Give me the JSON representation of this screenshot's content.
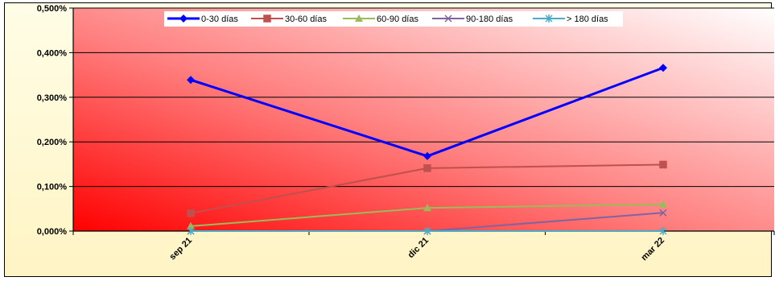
{
  "chart_data": {
    "type": "line",
    "title": "",
    "xlabel": "",
    "ylabel": "",
    "categories": [
      "sep 21",
      "dic 21",
      "mar 22"
    ],
    "ylim": [
      0,
      0.5
    ],
    "yticks": [
      0,
      0.1,
      0.2,
      0.3,
      0.4,
      0.5
    ],
    "ytick_labels": [
      "0,000%",
      "0,100%",
      "0,200%",
      "0,300%",
      "0,400%",
      "0,500%"
    ],
    "grid": true,
    "legend_position": "top",
    "series": [
      {
        "name": "0-30 días",
        "values": [
          0.339,
          0.168,
          0.366
        ],
        "color": "#0000ff",
        "marker": "diamond",
        "width": 3
      },
      {
        "name": "30-60 días",
        "values": [
          0.04,
          0.141,
          0.149
        ],
        "color": "#c0504d",
        "marker": "square",
        "width": 2
      },
      {
        "name": "60-90 días",
        "values": [
          0.011,
          0.052,
          0.06
        ],
        "color": "#9bbb59",
        "marker": "triangle",
        "width": 2
      },
      {
        "name": "90-180 días",
        "values": [
          0.0,
          0.0,
          0.041
        ],
        "color": "#8064a2",
        "marker": "x",
        "width": 2
      },
      {
        "name": "> 180 días",
        "values": [
          0.0,
          0.0,
          0.0
        ],
        "color": "#4bacc6",
        "marker": "star",
        "width": 2
      }
    ]
  }
}
